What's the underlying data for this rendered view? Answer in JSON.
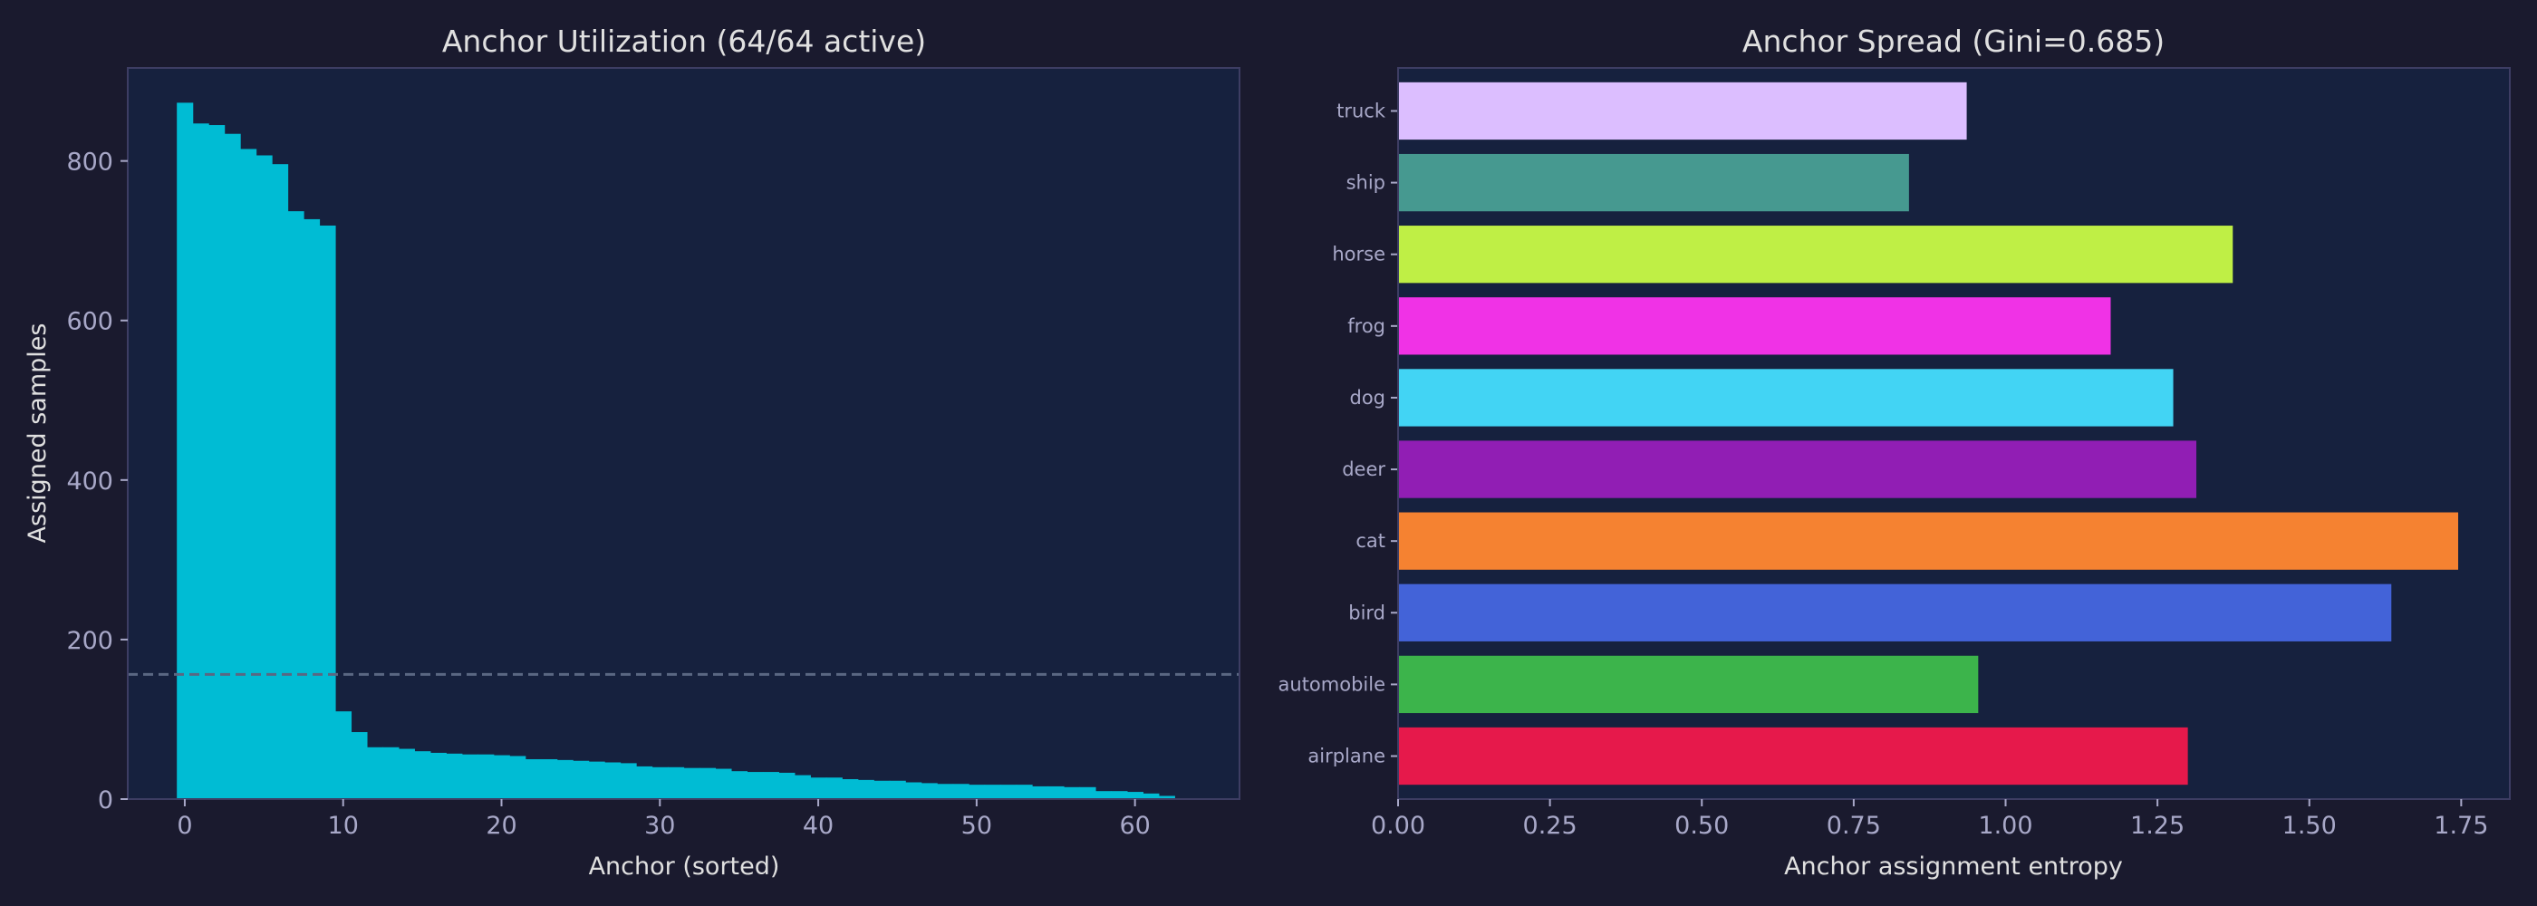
{
  "colors": {
    "background": "#1a1a2e",
    "axes_bg": "#16213e",
    "spine": "#3d3d63",
    "bar_util": "#00bcd4",
    "mean_line": "#5a6782"
  },
  "chart_data": [
    {
      "type": "bar",
      "title": "Anchor Utilization (64/64 active)",
      "xlabel": "Anchor (sorted)",
      "ylabel": "Assigned samples",
      "xlim": [
        -3.6,
        66.6
      ],
      "ylim": [
        0,
        916.6
      ],
      "xticks": [
        0,
        10,
        20,
        30,
        40,
        50,
        60
      ],
      "yticks": [
        0,
        200,
        400,
        600,
        800
      ],
      "reference_line": {
        "style": "dashed",
        "value": 156.25
      },
      "x": [
        0,
        1,
        2,
        3,
        4,
        5,
        6,
        7,
        8,
        9,
        10,
        11,
        12,
        13,
        14,
        15,
        16,
        17,
        18,
        19,
        20,
        21,
        22,
        23,
        24,
        25,
        26,
        27,
        28,
        29,
        30,
        31,
        32,
        33,
        34,
        35,
        36,
        37,
        38,
        39,
        40,
        41,
        42,
        43,
        44,
        45,
        46,
        47,
        48,
        49,
        50,
        51,
        52,
        53,
        54,
        55,
        56,
        57,
        58,
        59,
        60,
        61,
        62,
        63
      ],
      "values": [
        873,
        847,
        845,
        834,
        815,
        807,
        796,
        737,
        727,
        719,
        110,
        84,
        65,
        65,
        63,
        60,
        58,
        57,
        56,
        56,
        55,
        54,
        50,
        50,
        49,
        48,
        47,
        46,
        45,
        41,
        40,
        40,
        39,
        39,
        38,
        35,
        34,
        34,
        33,
        30,
        27,
        27,
        25,
        24,
        23,
        23,
        21,
        20,
        19,
        19,
        18,
        18,
        18,
        18,
        16,
        16,
        15,
        15,
        10,
        10,
        9,
        7,
        4,
        1
      ],
      "grid": false
    },
    {
      "type": "bar",
      "orientation": "horizontal",
      "title": "Anchor Spread (Gini=0.685)",
      "xlabel": "Anchor assignment entropy",
      "ylabel": "",
      "xlim": [
        0,
        1.83
      ],
      "xticks": [
        "0.00",
        "0.25",
        "0.50",
        "0.75",
        "1.00",
        "1.25",
        "1.50",
        "1.75"
      ],
      "categories": [
        "airplane",
        "automobile",
        "bird",
        "cat",
        "deer",
        "dog",
        "frog",
        "horse",
        "ship",
        "truck"
      ],
      "values": [
        1.3,
        0.955,
        1.635,
        1.745,
        1.314,
        1.276,
        1.173,
        1.374,
        0.841,
        0.936
      ],
      "bar_colors": [
        "#e6194b",
        "#3cb44b",
        "#4363d8",
        "#f58231",
        "#911eb4",
        "#42d4f4",
        "#f032e6",
        "#bfef45",
        "#469990",
        "#dcbeff"
      ],
      "grid": false
    }
  ]
}
